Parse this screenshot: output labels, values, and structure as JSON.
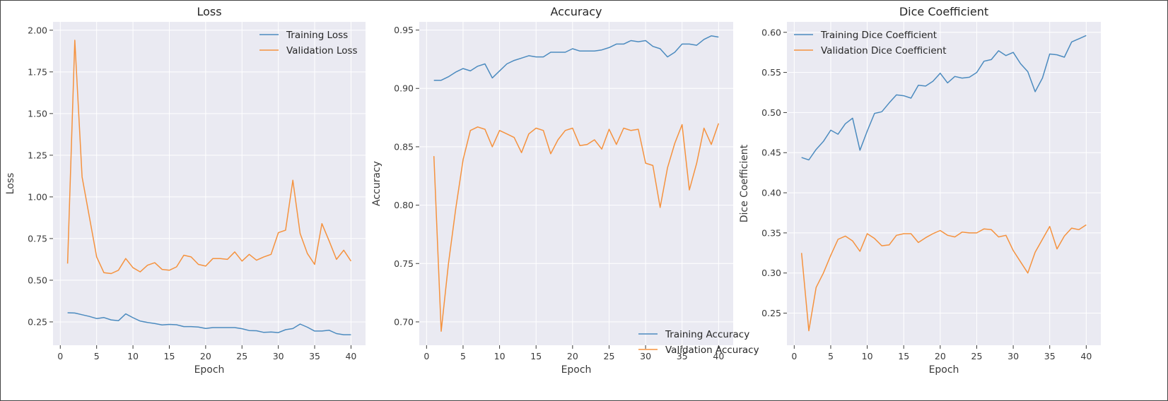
{
  "colors": {
    "training": "#4c8bbf",
    "validation": "#f5923e",
    "panel_bg": "#eaeaf2",
    "grid": "#ffffff"
  },
  "chart_data": [
    {
      "type": "line",
      "title": "Loss",
      "xlabel": "Epoch",
      "ylabel": "Loss",
      "xlim": [
        -1,
        42
      ],
      "ylim": [
        0.11,
        2.05
      ],
      "xticks": [
        0,
        5,
        10,
        15,
        20,
        25,
        30,
        35,
        40
      ],
      "xtick_labels": [
        "0",
        "5",
        "10",
        "15",
        "20",
        "25",
        "30",
        "35",
        "40"
      ],
      "yticks": [
        0.25,
        0.5,
        0.75,
        1.0,
        1.25,
        1.5,
        1.75,
        2.0
      ],
      "ytick_labels": [
        "0.25",
        "0.50",
        "0.75",
        "1.00",
        "1.25",
        "1.50",
        "1.75",
        "2.00"
      ],
      "grid": true,
      "legend_position": "top-right",
      "x": [
        1,
        2,
        3,
        4,
        5,
        6,
        7,
        8,
        9,
        10,
        11,
        12,
        13,
        14,
        15,
        16,
        17,
        18,
        19,
        20,
        21,
        22,
        23,
        24,
        25,
        26,
        27,
        28,
        29,
        30,
        31,
        32,
        33,
        34,
        35,
        36,
        37,
        38,
        39,
        40
      ],
      "series": [
        {
          "name": "Training Loss",
          "color_key": "training",
          "values": [
            0.305,
            0.303,
            0.293,
            0.283,
            0.27,
            0.276,
            0.262,
            0.257,
            0.298,
            0.275,
            0.255,
            0.247,
            0.24,
            0.232,
            0.235,
            0.233,
            0.222,
            0.222,
            0.219,
            0.211,
            0.216,
            0.216,
            0.216,
            0.216,
            0.209,
            0.198,
            0.197,
            0.187,
            0.189,
            0.186,
            0.203,
            0.21,
            0.237,
            0.218,
            0.195,
            0.195,
            0.2,
            0.18,
            0.173,
            0.173
          ]
        },
        {
          "name": "Validation Loss",
          "color_key": "validation",
          "values": [
            0.6,
            1.94,
            1.12,
            0.88,
            0.64,
            0.545,
            0.54,
            0.56,
            0.63,
            0.575,
            0.55,
            0.59,
            0.605,
            0.565,
            0.56,
            0.58,
            0.65,
            0.64,
            0.595,
            0.585,
            0.63,
            0.63,
            0.625,
            0.67,
            0.615,
            0.655,
            0.62,
            0.64,
            0.655,
            0.785,
            0.8,
            1.1,
            0.78,
            0.66,
            0.595,
            0.84,
            0.735,
            0.625,
            0.68,
            0.615
          ]
        }
      ]
    },
    {
      "type": "line",
      "title": "Accuracy",
      "xlabel": "Epoch",
      "ylabel": "Accuracy",
      "xlim": [
        -1,
        42
      ],
      "ylim": [
        0.68,
        0.957
      ],
      "xticks": [
        0,
        5,
        10,
        15,
        20,
        25,
        30,
        35,
        40
      ],
      "xtick_labels": [
        "0",
        "5",
        "10",
        "15",
        "20",
        "25",
        "30",
        "35",
        "40"
      ],
      "yticks": [
        0.7,
        0.75,
        0.8,
        0.85,
        0.9,
        0.95
      ],
      "ytick_labels": [
        "0.70",
        "0.75",
        "0.80",
        "0.85",
        "0.90",
        "0.95"
      ],
      "grid": true,
      "legend_position": "bottom-right",
      "x": [
        1,
        2,
        3,
        4,
        5,
        6,
        7,
        8,
        9,
        10,
        11,
        12,
        13,
        14,
        15,
        16,
        17,
        18,
        19,
        20,
        21,
        22,
        23,
        24,
        25,
        26,
        27,
        28,
        29,
        30,
        31,
        32,
        33,
        34,
        35,
        36,
        37,
        38,
        39,
        40
      ],
      "series": [
        {
          "name": "Training Accuracy",
          "color_key": "training",
          "values": [
            0.907,
            0.907,
            0.91,
            0.914,
            0.917,
            0.915,
            0.919,
            0.921,
            0.909,
            0.915,
            0.921,
            0.924,
            0.926,
            0.928,
            0.927,
            0.927,
            0.931,
            0.931,
            0.931,
            0.934,
            0.932,
            0.932,
            0.932,
            0.933,
            0.935,
            0.938,
            0.938,
            0.941,
            0.94,
            0.941,
            0.936,
            0.934,
            0.927,
            0.931,
            0.938,
            0.938,
            0.937,
            0.942,
            0.945,
            0.944
          ]
        },
        {
          "name": "Validation Accuracy",
          "color_key": "validation",
          "values": [
            0.842,
            0.692,
            0.75,
            0.797,
            0.839,
            0.864,
            0.867,
            0.865,
            0.85,
            0.864,
            0.861,
            0.858,
            0.845,
            0.861,
            0.866,
            0.864,
            0.844,
            0.856,
            0.864,
            0.866,
            0.851,
            0.852,
            0.856,
            0.848,
            0.865,
            0.852,
            0.866,
            0.864,
            0.865,
            0.836,
            0.834,
            0.798,
            0.832,
            0.853,
            0.869,
            0.813,
            0.836,
            0.866,
            0.852,
            0.87
          ]
        }
      ]
    },
    {
      "type": "line",
      "title": "Dice Coefficient",
      "xlabel": "Epoch",
      "ylabel": "Dice Coefficient",
      "xlim": [
        -1,
        42
      ],
      "ylim": [
        0.21,
        0.613
      ],
      "xticks": [
        0,
        5,
        10,
        15,
        20,
        25,
        30,
        35,
        40
      ],
      "xtick_labels": [
        "0",
        "5",
        "10",
        "15",
        "20",
        "25",
        "30",
        "35",
        "40"
      ],
      "yticks": [
        0.25,
        0.3,
        0.35,
        0.4,
        0.45,
        0.5,
        0.55,
        0.6
      ],
      "ytick_labels": [
        "0.25",
        "0.30",
        "0.35",
        "0.40",
        "0.45",
        "0.50",
        "0.55",
        "0.60"
      ],
      "grid": true,
      "legend_position": "top-left",
      "x": [
        1,
        2,
        3,
        4,
        5,
        6,
        7,
        8,
        9,
        10,
        11,
        12,
        13,
        14,
        15,
        16,
        17,
        18,
        19,
        20,
        21,
        22,
        23,
        24,
        25,
        26,
        27,
        28,
        29,
        30,
        31,
        32,
        33,
        34,
        35,
        36,
        37,
        38,
        39,
        40
      ],
      "series": [
        {
          "name": "Training Dice Coefficient",
          "color_key": "training",
          "values": [
            0.444,
            0.441,
            0.454,
            0.464,
            0.478,
            0.473,
            0.486,
            0.493,
            0.453,
            0.477,
            0.499,
            0.501,
            0.512,
            0.522,
            0.521,
            0.518,
            0.534,
            0.533,
            0.539,
            0.549,
            0.537,
            0.545,
            0.543,
            0.544,
            0.55,
            0.564,
            0.566,
            0.577,
            0.571,
            0.575,
            0.561,
            0.551,
            0.526,
            0.543,
            0.573,
            0.572,
            0.569,
            0.588,
            0.592,
            0.596
          ]
        },
        {
          "name": "Validation Dice Coefficient",
          "color_key": "validation",
          "values": [
            0.325,
            0.228,
            0.282,
            0.3,
            0.322,
            0.342,
            0.346,
            0.34,
            0.327,
            0.349,
            0.343,
            0.334,
            0.335,
            0.347,
            0.349,
            0.349,
            0.338,
            0.344,
            0.349,
            0.353,
            0.347,
            0.345,
            0.351,
            0.35,
            0.35,
            0.355,
            0.354,
            0.345,
            0.347,
            0.328,
            0.314,
            0.3,
            0.326,
            0.342,
            0.358,
            0.33,
            0.346,
            0.356,
            0.354,
            0.36
          ]
        }
      ]
    }
  ]
}
